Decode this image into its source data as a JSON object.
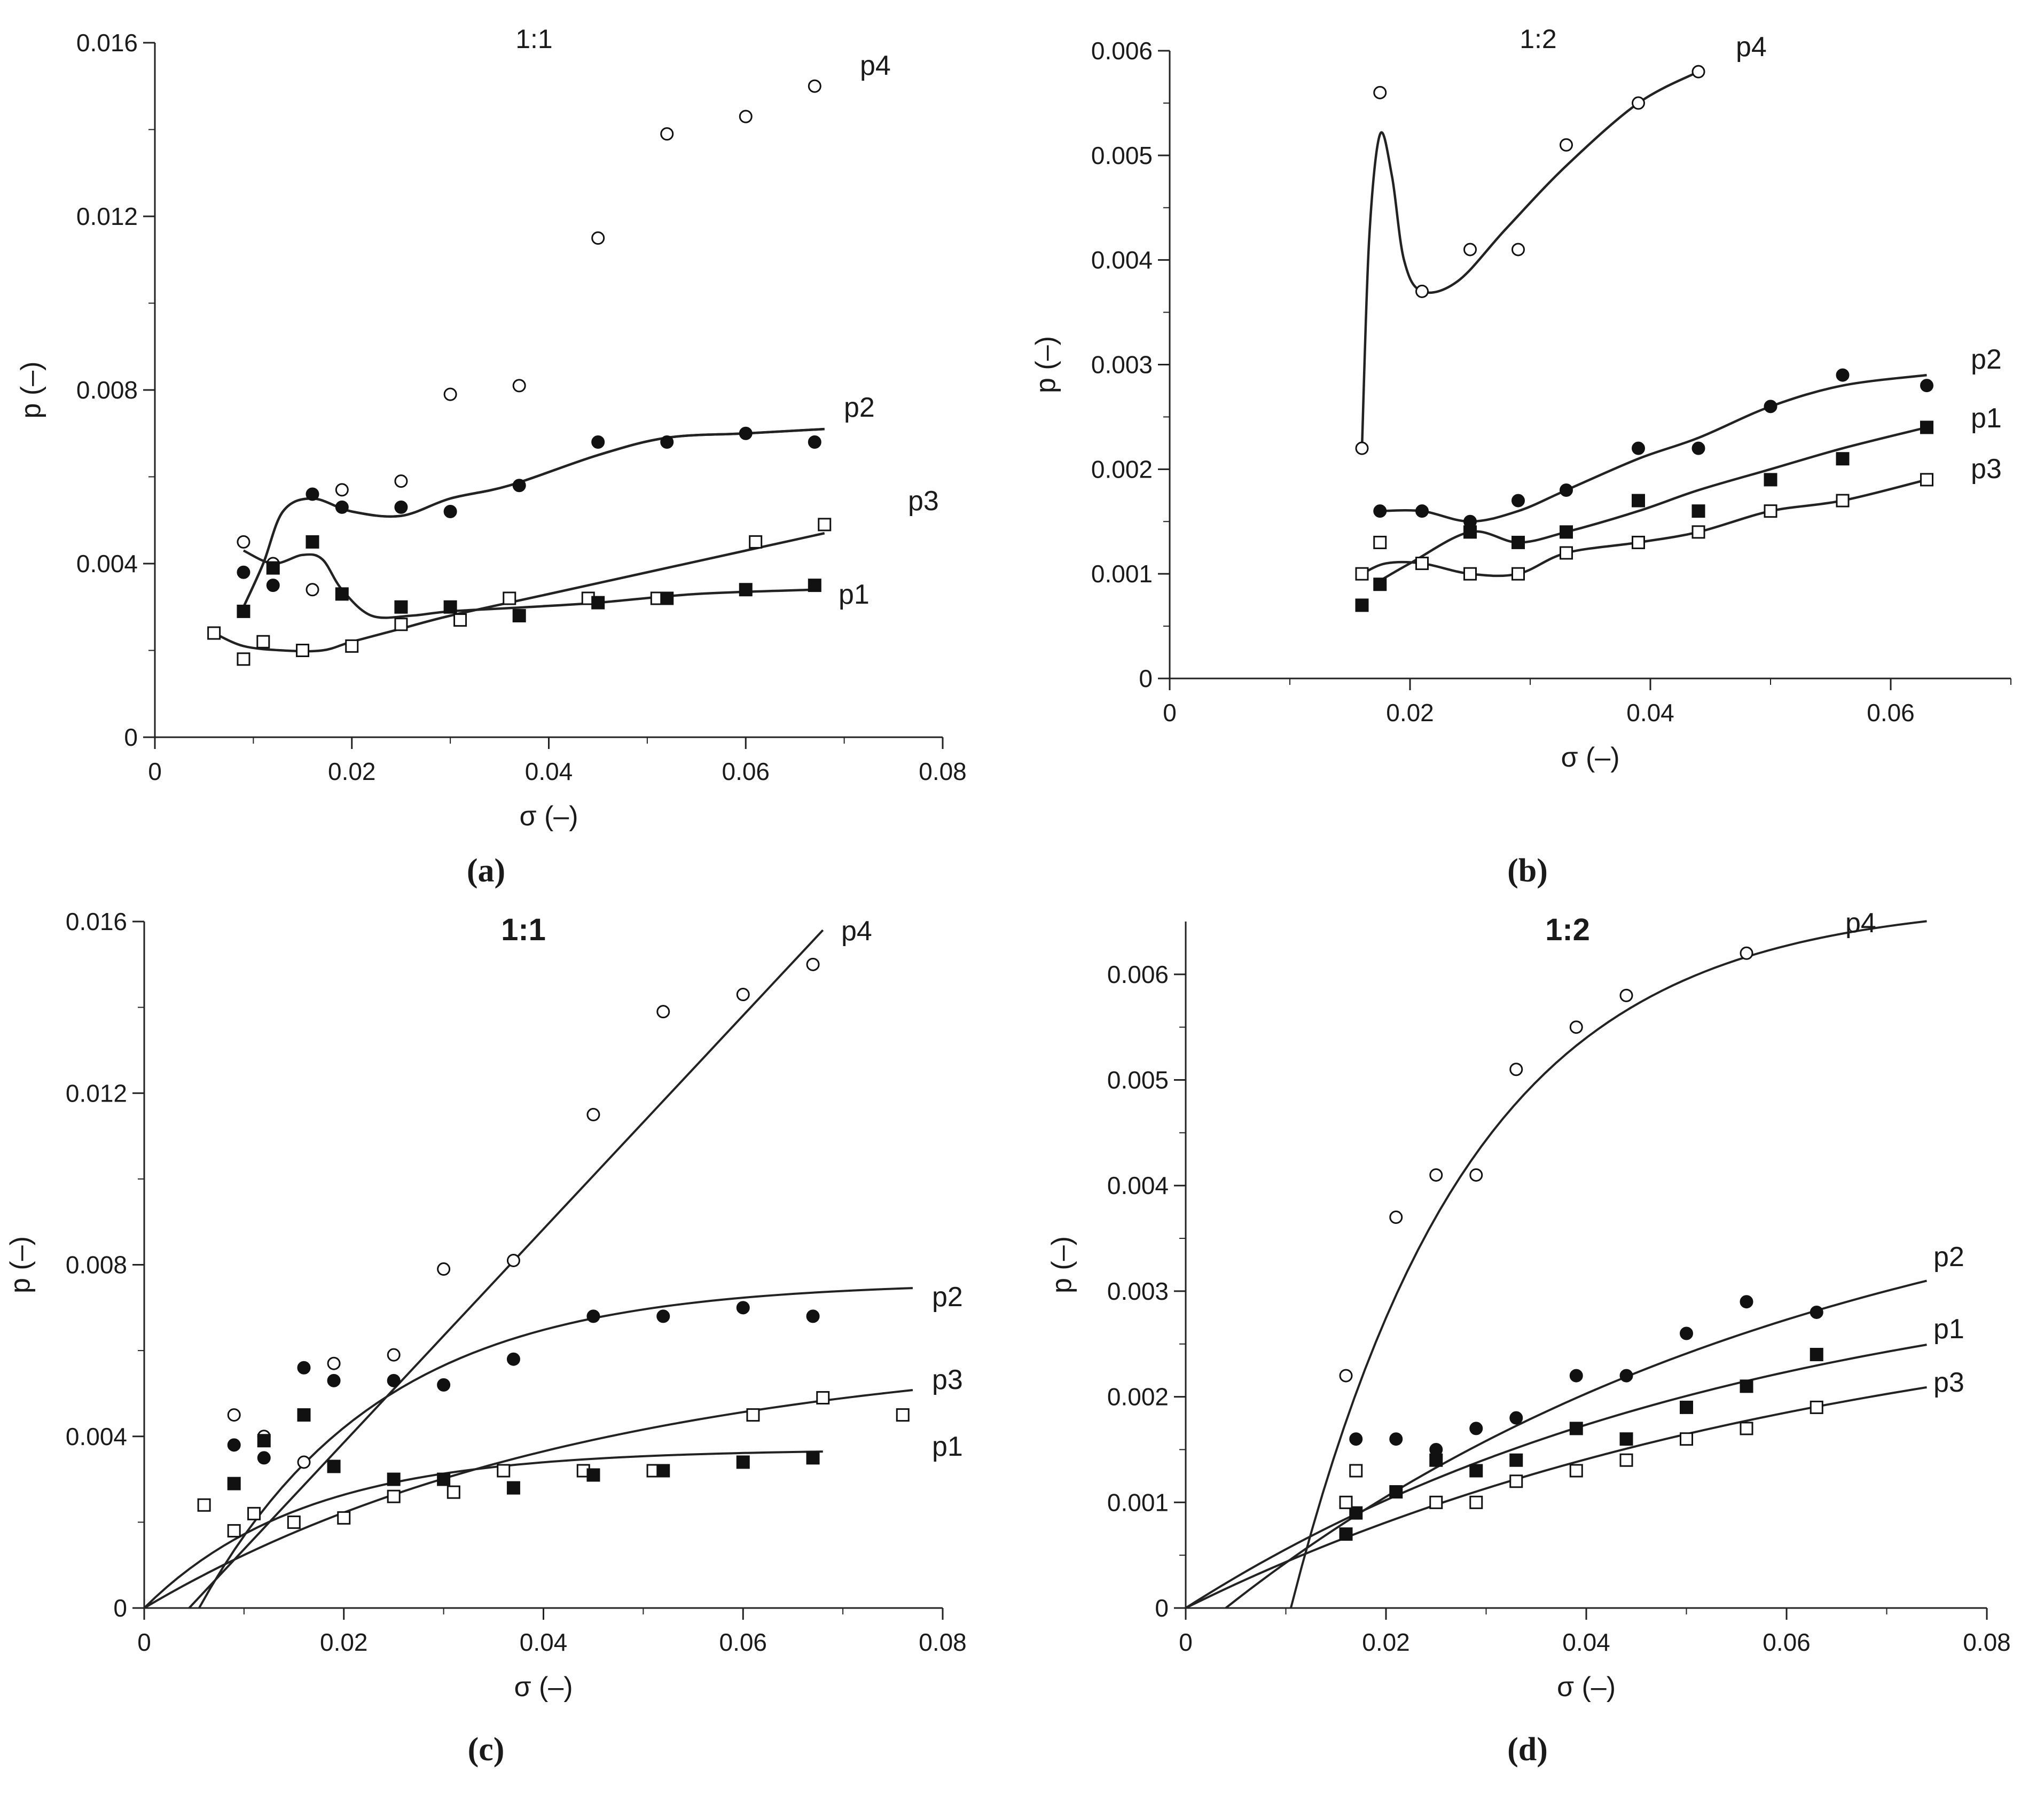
{
  "figure": {
    "panel_labels": [
      "(a)",
      "(b)",
      "(c)",
      "(d)"
    ]
  },
  "chart_data": [
    {
      "panel": "(a)",
      "type": "scatter",
      "fit": "smooth",
      "title": "1:1",
      "xlabel": "σ (–)",
      "ylabel": "p (–)",
      "xlim": [
        0,
        0.08
      ],
      "ylim": [
        0,
        0.016
      ],
      "xticks": [
        "0",
        "0.02",
        "0.04",
        "0.06",
        "0.08"
      ],
      "yticks": [
        "0",
        "0.004",
        "0.008",
        "0.012",
        "0.016"
      ],
      "series": [
        {
          "name": "p4",
          "marker": "open-circle",
          "x": [
            0.009,
            0.012,
            0.016,
            0.019,
            0.025,
            0.03,
            0.037,
            0.045,
            0.052,
            0.06,
            0.067
          ],
          "y": [
            0.0045,
            0.004,
            0.0034,
            0.0057,
            0.0059,
            0.0079,
            0.0081,
            0.0115,
            0.0139,
            0.0143,
            0.015
          ]
        },
        {
          "name": "p2",
          "marker": "filled-circle",
          "x": [
            0.009,
            0.012,
            0.016,
            0.019,
            0.025,
            0.03,
            0.037,
            0.045,
            0.052,
            0.06,
            0.067
          ],
          "y": [
            0.0038,
            0.0035,
            0.0056,
            0.0053,
            0.0053,
            0.0052,
            0.0058,
            0.0068,
            0.0068,
            0.007,
            0.0068
          ]
        },
        {
          "name": "p3",
          "marker": "open-square",
          "x": [
            0.006,
            0.009,
            0.011,
            0.015,
            0.02,
            0.025,
            0.031,
            0.036,
            0.044,
            0.051,
            0.061,
            0.068
          ],
          "y": [
            0.0024,
            0.0018,
            0.0022,
            0.002,
            0.0021,
            0.0026,
            0.0027,
            0.0032,
            0.0032,
            0.0032,
            0.0045,
            0.0049
          ]
        },
        {
          "name": "p1",
          "marker": "filled-square",
          "x": [
            0.009,
            0.012,
            0.016,
            0.019,
            0.025,
            0.03,
            0.037,
            0.045,
            0.052,
            0.06,
            0.067
          ],
          "y": [
            0.0029,
            0.0039,
            0.0045,
            0.0033,
            0.003,
            0.003,
            0.0028,
            0.0031,
            0.0032,
            0.0034,
            0.0035
          ]
        }
      ]
    },
    {
      "panel": "(b)",
      "type": "scatter",
      "fit": "smooth",
      "title": "1:2",
      "xlabel": "σ (–)",
      "ylabel": "p (–)",
      "xlim": [
        0,
        0.07
      ],
      "ylim": [
        0,
        0.006
      ],
      "xticks": [
        "0",
        "0.02",
        "0.04",
        "0.06"
      ],
      "yticks": [
        "0",
        "0.001",
        "0.002",
        "0.003",
        "0.004",
        "0.005",
        "0.006"
      ],
      "series": [
        {
          "name": "p4",
          "marker": "open-circle",
          "x": [
            0.016,
            0.0175,
            0.021,
            0.025,
            0.029,
            0.033,
            0.039,
            0.044
          ],
          "y": [
            0.0022,
            0.0056,
            0.0037,
            0.0041,
            0.0041,
            0.0051,
            0.0055,
            0.0058
          ]
        },
        {
          "name": "p2",
          "marker": "filled-circle",
          "x": [
            0.0175,
            0.021,
            0.025,
            0.029,
            0.033,
            0.039,
            0.044,
            0.05,
            0.056,
            0.063
          ],
          "y": [
            0.0016,
            0.0016,
            0.0015,
            0.0017,
            0.0018,
            0.0022,
            0.0022,
            0.0026,
            0.0029,
            0.0028
          ]
        },
        {
          "name": "p1",
          "marker": "filled-square",
          "x": [
            0.016,
            0.0175,
            0.025,
            0.029,
            0.033,
            0.039,
            0.044,
            0.05,
            0.056,
            0.063
          ],
          "y": [
            0.0007,
            0.0009,
            0.0014,
            0.0013,
            0.0014,
            0.0017,
            0.0016,
            0.0019,
            0.0021,
            0.0024
          ]
        },
        {
          "name": "p3",
          "marker": "open-square",
          "x": [
            0.016,
            0.0175,
            0.021,
            0.025,
            0.029,
            0.033,
            0.039,
            0.044,
            0.05,
            0.056,
            0.063
          ],
          "y": [
            0.001,
            0.0013,
            0.0011,
            0.001,
            0.001,
            0.0012,
            0.0013,
            0.0014,
            0.0016,
            0.0017,
            0.0019
          ]
        }
      ]
    },
    {
      "panel": "(c)",
      "type": "scatter",
      "fit": "model",
      "title": "1:1",
      "xlabel": "σ (–)",
      "ylabel": "p (–)",
      "xlim": [
        0,
        0.08
      ],
      "ylim": [
        0,
        0.016
      ],
      "xticks": [
        "0",
        "0.02",
        "0.04",
        "0.06",
        "0.08"
      ],
      "yticks": [
        "0",
        "0.004",
        "0.008",
        "0.012",
        "0.016"
      ],
      "series": [
        {
          "name": "p4",
          "marker": "open-circle",
          "x": [
            0.009,
            0.012,
            0.016,
            0.019,
            0.025,
            0.03,
            0.037,
            0.045,
            0.052,
            0.06,
            0.067
          ],
          "y": [
            0.0045,
            0.004,
            0.0034,
            0.0057,
            0.0059,
            0.0079,
            0.0081,
            0.0115,
            0.0139,
            0.0143,
            0.015
          ]
        },
        {
          "name": "p2",
          "marker": "filled-circle",
          "x": [
            0.009,
            0.012,
            0.016,
            0.019,
            0.025,
            0.03,
            0.037,
            0.045,
            0.052,
            0.06,
            0.067
          ],
          "y": [
            0.0038,
            0.0035,
            0.0056,
            0.0053,
            0.0053,
            0.0052,
            0.0058,
            0.0068,
            0.0068,
            0.007,
            0.0068
          ]
        },
        {
          "name": "p3",
          "marker": "open-square",
          "x": [
            0.006,
            0.009,
            0.011,
            0.015,
            0.02,
            0.025,
            0.031,
            0.036,
            0.044,
            0.051,
            0.061,
            0.068,
            0.076
          ],
          "y": [
            0.0024,
            0.0018,
            0.0022,
            0.002,
            0.0021,
            0.0026,
            0.0027,
            0.0032,
            0.0032,
            0.0032,
            0.0045,
            0.0049,
            0.0045
          ]
        },
        {
          "name": "p1",
          "marker": "filled-square",
          "x": [
            0.009,
            0.012,
            0.016,
            0.019,
            0.025,
            0.03,
            0.037,
            0.045,
            0.052,
            0.06,
            0.067
          ],
          "y": [
            0.0029,
            0.0039,
            0.0045,
            0.0033,
            0.003,
            0.003,
            0.0028,
            0.0031,
            0.0032,
            0.0034,
            0.0035
          ]
        }
      ]
    },
    {
      "panel": "(d)",
      "type": "scatter",
      "fit": "model",
      "title": "1:2",
      "xlabel": "σ (–)",
      "ylabel": "p (–)",
      "xlim": [
        0,
        0.08
      ],
      "ylim": [
        0,
        0.0065
      ],
      "xticks": [
        "0",
        "0.02",
        "0.04",
        "0.06",
        "0.08"
      ],
      "yticks": [
        "0",
        "0.001",
        "0.002",
        "0.003",
        "0.004",
        "0.005",
        "0.006"
      ],
      "series": [
        {
          "name": "p4",
          "marker": "open-circle",
          "x": [
            0.016,
            0.021,
            0.025,
            0.029,
            0.033,
            0.039,
            0.044,
            0.056
          ],
          "y": [
            0.0022,
            0.0037,
            0.0041,
            0.0041,
            0.0051,
            0.0055,
            0.0058,
            0.0062
          ]
        },
        {
          "name": "p2",
          "marker": "filled-circle",
          "x": [
            0.017,
            0.021,
            0.025,
            0.029,
            0.033,
            0.039,
            0.044,
            0.05,
            0.056,
            0.063
          ],
          "y": [
            0.0016,
            0.0016,
            0.0015,
            0.0017,
            0.0018,
            0.0022,
            0.0022,
            0.0026,
            0.0029,
            0.0028
          ]
        },
        {
          "name": "p1",
          "marker": "filled-square",
          "x": [
            0.016,
            0.017,
            0.021,
            0.025,
            0.029,
            0.033,
            0.039,
            0.044,
            0.05,
            0.056,
            0.063
          ],
          "y": [
            0.0007,
            0.0009,
            0.0011,
            0.0014,
            0.0013,
            0.0014,
            0.0017,
            0.0016,
            0.0019,
            0.0021,
            0.0024
          ]
        },
        {
          "name": "p3",
          "marker": "open-square",
          "x": [
            0.016,
            0.017,
            0.025,
            0.029,
            0.033,
            0.039,
            0.044,
            0.05,
            0.056,
            0.063
          ],
          "y": [
            0.001,
            0.0013,
            0.001,
            0.001,
            0.0012,
            0.0013,
            0.0014,
            0.0016,
            0.0017,
            0.0019
          ]
        }
      ]
    }
  ]
}
